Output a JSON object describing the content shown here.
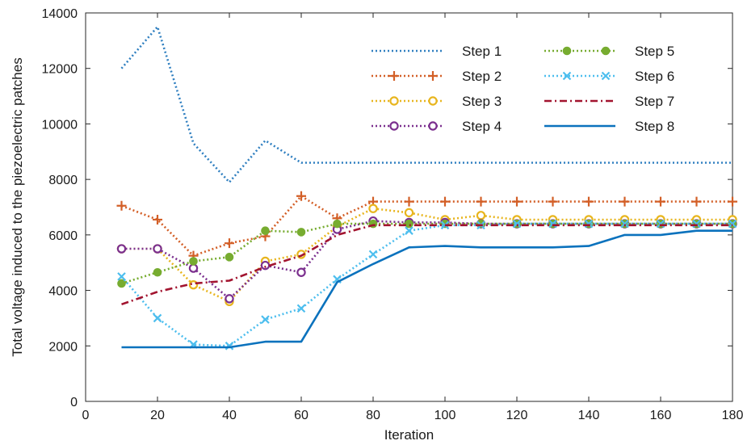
{
  "chart_data": {
    "type": "line",
    "xlabel": "Iteration",
    "ylabel": "Total voltage induced to the piezoelectric patches",
    "xlim": [
      0,
      180
    ],
    "ylim": [
      0,
      14000
    ],
    "xticks": [
      0,
      20,
      40,
      60,
      80,
      100,
      120,
      140,
      160,
      180
    ],
    "yticks": [
      0,
      2000,
      4000,
      6000,
      8000,
      10000,
      12000,
      14000
    ],
    "grid": false,
    "legend_position": "top-right",
    "x": [
      10,
      20,
      30,
      40,
      50,
      60,
      70,
      80,
      90,
      100,
      110,
      120,
      130,
      140,
      150,
      160,
      170,
      180
    ],
    "series": [
      {
        "name": "Step 1",
        "color": "#2f7fc0",
        "dash": "dotted",
        "marker": "none",
        "values": [
          12000,
          13500,
          9300,
          7900,
          9400,
          8600,
          8600,
          8600,
          8600,
          8600,
          8600,
          8600,
          8600,
          8600,
          8600,
          8600,
          8600,
          8600
        ]
      },
      {
        "name": "Step 2",
        "color": "#d35f27",
        "dash": "dotted",
        "marker": "plus",
        "values": [
          7050,
          6550,
          5250,
          5700,
          5950,
          7400,
          6600,
          7200,
          7200,
          7200,
          7200,
          7200,
          7200,
          7200,
          7200,
          7200,
          7200,
          7200
        ]
      },
      {
        "name": "Step 3",
        "color": "#e8b51e",
        "dash": "dotted",
        "marker": "circle",
        "values": [
          5500,
          5500,
          4200,
          3600,
          5050,
          5300,
          6300,
          6950,
          6800,
          6550,
          6700,
          6550,
          6550,
          6550,
          6550,
          6550,
          6550,
          6550
        ]
      },
      {
        "name": "Step 4",
        "color": "#7b2f8e",
        "dash": "dotted",
        "marker": "circle",
        "values": [
          5500,
          5500,
          4800,
          3700,
          4900,
          4650,
          6200,
          6500,
          6450,
          6450,
          6400,
          6400,
          6400,
          6400,
          6400,
          6400,
          6400,
          6400
        ]
      },
      {
        "name": "Step 5",
        "color": "#77ac30",
        "dash": "dotted",
        "marker": "dot",
        "values": [
          4250,
          4650,
          5050,
          5200,
          6150,
          6100,
          6400,
          6400,
          6400,
          6400,
          6400,
          6400,
          6400,
          6400,
          6400,
          6400,
          6400,
          6400
        ]
      },
      {
        "name": "Step 6",
        "color": "#4dbeee",
        "dash": "dotted",
        "marker": "x",
        "values": [
          4500,
          3000,
          2050,
          2000,
          2950,
          3350,
          4400,
          5300,
          6150,
          6350,
          6350,
          6400,
          6400,
          6400,
          6400,
          6400,
          6400,
          6400
        ]
      },
      {
        "name": "Step 7",
        "color": "#a2142f",
        "dash": "dashdot",
        "marker": "none",
        "values": [
          3500,
          3950,
          4250,
          4350,
          4850,
          5250,
          6000,
          6350,
          6350,
          6350,
          6350,
          6350,
          6350,
          6350,
          6350,
          6350,
          6350,
          6350
        ]
      },
      {
        "name": "Step 8",
        "color": "#0b72bd",
        "dash": "solid",
        "marker": "none",
        "values": [
          1950,
          1950,
          1950,
          1950,
          2150,
          2150,
          4300,
          4950,
          5550,
          5600,
          5550,
          5550,
          5550,
          5600,
          6000,
          6000,
          6150,
          6150
        ]
      }
    ]
  }
}
